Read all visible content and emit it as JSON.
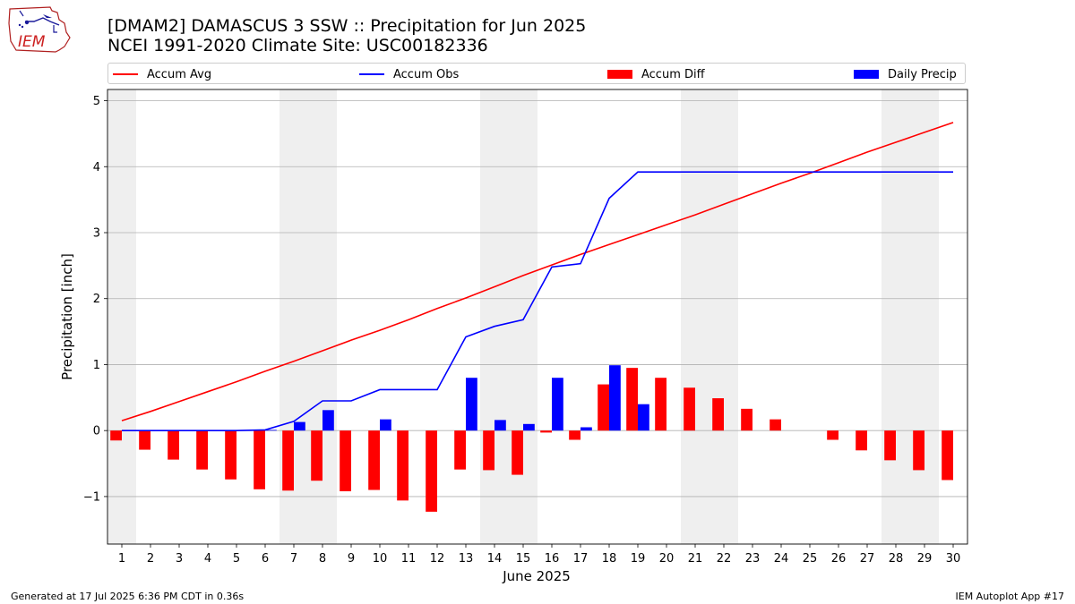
{
  "header": {
    "title_line1": "[DMAM2] DAMASCUS 3 SSW :: Precipitation for Jun 2025",
    "title_line2": "NCEI 1991-2020 Climate Site: USC00182336"
  },
  "logo": {
    "text": "IEM"
  },
  "footer": {
    "left": "Generated at 17 Jul 2025 6:36 PM CDT in 0.36s",
    "right": "IEM Autoplot App #17"
  },
  "colors": {
    "accum_avg": "#ff0000",
    "accum_obs": "#0000ff",
    "accum_diff": "#ff0000",
    "daily_precip": "#0000ff",
    "weekend_shade": "#efefef",
    "grid": "#b0b0b0"
  },
  "chart_data": {
    "type": "bar",
    "xlabel": "June 2025",
    "ylabel": "Precipitation [inch]",
    "xlim": [
      0.5,
      30.5
    ],
    "ylim": [
      -1.72,
      5.17
    ],
    "yticks": [
      -1,
      0,
      1,
      2,
      3,
      4,
      5
    ],
    "ytick_labels": [
      "−1",
      "0",
      "1",
      "2",
      "3",
      "4",
      "5"
    ],
    "grid": "horizontal",
    "legend_placement": "top, above plot",
    "x": [
      1,
      2,
      3,
      4,
      5,
      6,
      7,
      8,
      9,
      10,
      11,
      12,
      13,
      14,
      15,
      16,
      17,
      18,
      19,
      20,
      21,
      22,
      23,
      24,
      25,
      26,
      27,
      28,
      29,
      30
    ],
    "x_tick_labels": [
      "1",
      "2",
      "3",
      "4",
      "5",
      "6",
      "7",
      "8",
      "9",
      "10",
      "11",
      "12",
      "13",
      "14",
      "15",
      "16",
      "17",
      "18",
      "19",
      "20",
      "21",
      "22",
      "23",
      "24",
      "25",
      "26",
      "27",
      "28",
      "29",
      "30"
    ],
    "weekend_days": [
      1,
      7,
      8,
      14,
      15,
      21,
      22,
      28,
      29
    ],
    "series": [
      {
        "name": "Accum Avg",
        "kind": "line",
        "values": [
          0.15,
          0.29,
          0.44,
          0.59,
          0.74,
          0.9,
          1.05,
          1.21,
          1.37,
          1.52,
          1.68,
          1.85,
          2.01,
          2.18,
          2.35,
          2.51,
          2.67,
          2.82,
          2.97,
          3.12,
          3.27,
          3.43,
          3.59,
          3.75,
          3.9,
          4.06,
          4.22,
          4.37,
          4.52,
          4.67
        ]
      },
      {
        "name": "Accum Obs",
        "kind": "line",
        "values": [
          0.0,
          0.0,
          0.0,
          0.0,
          0.0,
          0.01,
          0.14,
          0.45,
          0.45,
          0.62,
          0.62,
          0.62,
          1.42,
          1.58,
          1.68,
          2.48,
          2.53,
          3.52,
          3.92,
          3.92,
          3.92,
          3.92,
          3.92,
          3.92,
          3.92,
          3.92,
          3.92,
          3.92,
          3.92,
          3.92
        ]
      },
      {
        "name": "Accum Diff",
        "kind": "bar",
        "values": [
          -0.15,
          -0.29,
          -0.44,
          -0.59,
          -0.74,
          -0.89,
          -0.91,
          -0.76,
          -0.92,
          -0.9,
          -1.06,
          -1.23,
          -0.59,
          -0.6,
          -0.67,
          -0.03,
          -0.14,
          0.7,
          0.95,
          0.8,
          0.65,
          0.49,
          0.33,
          0.17,
          0.0,
          -0.14,
          -0.3,
          -0.45,
          -0.6,
          -0.75
        ]
      },
      {
        "name": "Daily Precip",
        "kind": "bar",
        "values": [
          0.0,
          0.0,
          0.0,
          0.0,
          0.0,
          0.01,
          0.13,
          0.31,
          0.0,
          0.17,
          0.0,
          0.0,
          0.8,
          0.16,
          0.1,
          0.8,
          0.05,
          0.99,
          0.4,
          0.0,
          0.0,
          0.0,
          0.0,
          0.0,
          0.0,
          0.0,
          0.0,
          0.0,
          0.0,
          0.0
        ]
      }
    ]
  }
}
